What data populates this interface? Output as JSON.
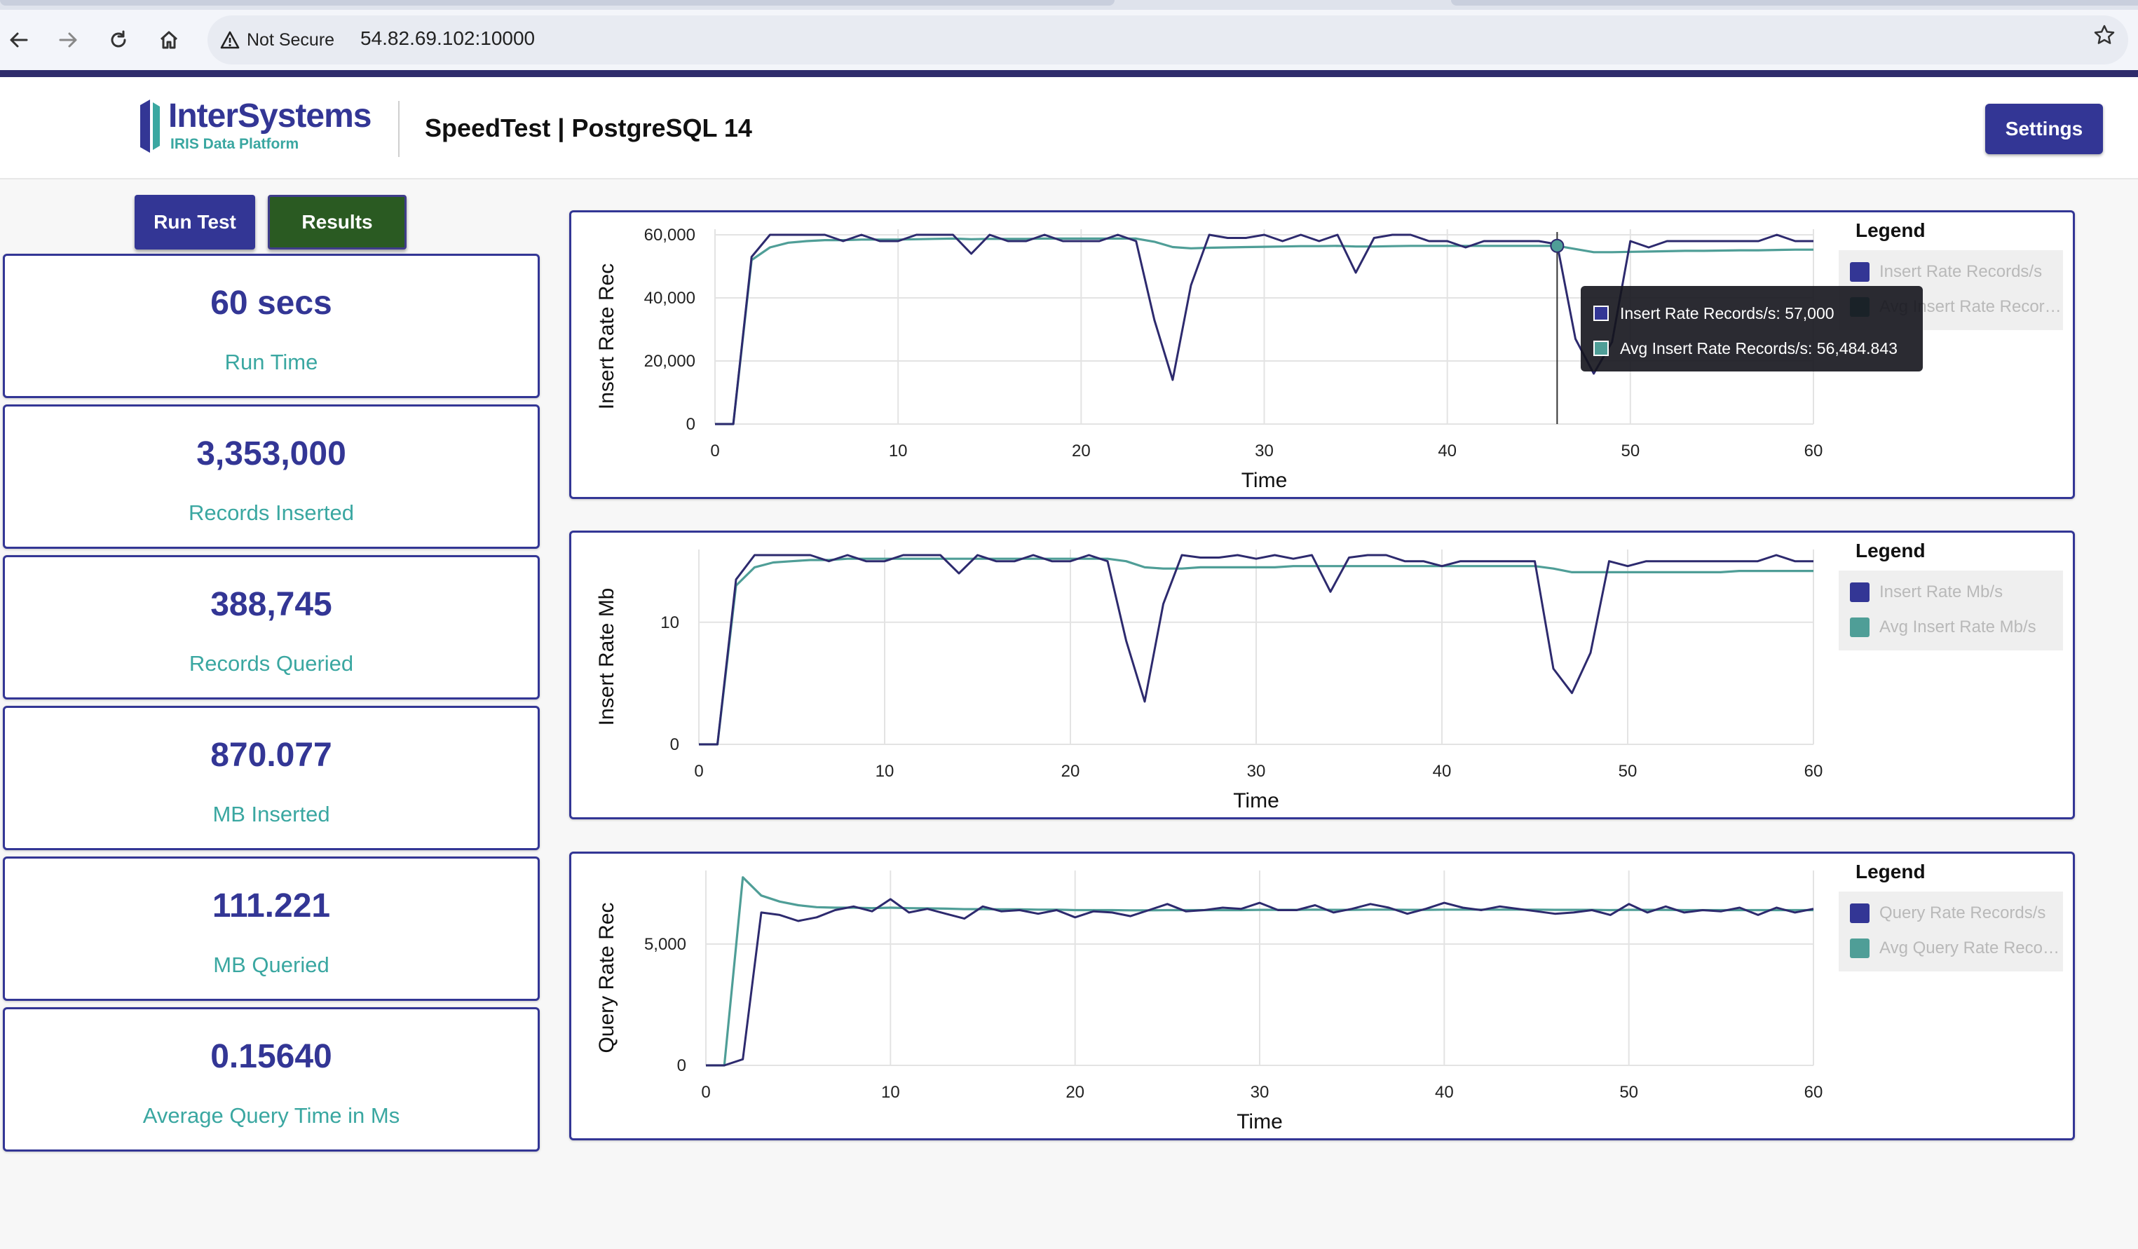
{
  "browser": {
    "security_label": "Not Secure",
    "url": "54.82.69.102:10000",
    "icons": [
      "back-icon",
      "forward-icon",
      "reload-icon",
      "home-icon",
      "warning-icon",
      "star-icon"
    ]
  },
  "header": {
    "brand_name": "InterSystems",
    "brand_tagline": "IRIS Data Platform",
    "title": "SpeedTest | PostgreSQL 14",
    "settings_label": "Settings"
  },
  "actions": {
    "run_test_label": "Run Test",
    "results_label": "Results"
  },
  "stats": [
    {
      "value": "60 secs",
      "label": "Run Time"
    },
    {
      "value": "3,353,000",
      "label": "Records Inserted"
    },
    {
      "value": "388,745",
      "label": "Records Queried"
    },
    {
      "value": "870.077",
      "label": "MB Inserted"
    },
    {
      "value": "111.221",
      "label": "MB Queried"
    },
    {
      "value": "0.15640",
      "label": "Average Query Time in Ms"
    }
  ],
  "colors": {
    "primary": "#333695",
    "teal": "#3aa7a1",
    "dark_green": "#2a5a22",
    "series_line": "#2d2a6e",
    "avg_line": "#4f9e97"
  },
  "chart_data": [
    {
      "type": "line",
      "xlabel": "Time",
      "ylabel": "Insert Rate Rec",
      "xlim": [
        0,
        60
      ],
      "ylim": [
        0,
        60000
      ],
      "xticks": [
        0,
        10,
        20,
        30,
        40,
        50,
        60
      ],
      "xtick_labels": [
        "0",
        "10",
        "20",
        "30",
        "40",
        "50",
        "60"
      ],
      "yticks": [
        0,
        20000,
        40000,
        60000
      ],
      "ytick_labels": [
        "0",
        "20,000",
        "40,000",
        "60,000"
      ],
      "grid": true,
      "legend_title": "Legend",
      "legend_position": "right",
      "series": [
        {
          "name": "Insert Rate Records/s",
          "color": "#2d2a6e",
          "x": [
            0,
            1,
            2,
            3,
            4,
            5,
            6,
            7,
            8,
            9,
            10,
            11,
            12,
            13,
            14,
            15,
            16,
            17,
            18,
            19,
            20,
            21,
            22,
            23,
            24,
            25,
            26,
            27,
            28,
            29,
            30,
            31,
            32,
            33,
            34,
            35,
            36,
            37,
            38,
            39,
            40,
            41,
            42,
            43,
            44,
            45,
            46,
            47,
            48,
            49,
            50,
            51,
            52,
            53,
            54,
            55,
            56,
            57,
            58,
            59,
            60
          ],
          "values": [
            0,
            0,
            53000,
            60000,
            60000,
            60000,
            60000,
            58000,
            60000,
            58000,
            58000,
            60000,
            60000,
            60000,
            54000,
            60000,
            58000,
            58000,
            60000,
            58000,
            58000,
            58000,
            60000,
            58000,
            33000,
            14000,
            44000,
            60000,
            59000,
            59000,
            60000,
            58000,
            60000,
            58000,
            60000,
            48000,
            59000,
            60000,
            60000,
            58000,
            58000,
            56000,
            58000,
            58000,
            58000,
            58000,
            57000,
            27000,
            16000,
            26000,
            58000,
            56000,
            58000,
            58000,
            58000,
            58000,
            58000,
            58000,
            60000,
            58000,
            58000
          ]
        },
        {
          "name": "Avg Insert Rate Records/s",
          "color": "#4f9e97",
          "x": [
            0,
            1,
            2,
            3,
            4,
            5,
            6,
            7,
            8,
            9,
            10,
            11,
            12,
            13,
            14,
            15,
            16,
            17,
            18,
            19,
            20,
            21,
            22,
            23,
            24,
            25,
            26,
            27,
            28,
            29,
            30,
            31,
            32,
            33,
            34,
            35,
            36,
            37,
            38,
            39,
            40,
            41,
            42,
            43,
            44,
            45,
            46,
            47,
            48,
            49,
            50,
            51,
            52,
            53,
            54,
            55,
            56,
            57,
            58,
            59,
            60
          ],
          "values": [
            0,
            0,
            52000,
            56000,
            57500,
            58000,
            58300,
            58300,
            58500,
            58500,
            58500,
            58600,
            58700,
            58800,
            58600,
            58700,
            58700,
            58700,
            58800,
            58800,
            58800,
            58800,
            58800,
            58800,
            57800,
            56100,
            55700,
            55900,
            56000,
            56100,
            56200,
            56300,
            56400,
            56400,
            56500,
            56300,
            56300,
            56400,
            56500,
            56500,
            56500,
            56500,
            56500,
            56500,
            56500,
            56500,
            56500,
            55500,
            54500,
            54500,
            54600,
            54700,
            54800,
            54900,
            54900,
            55000,
            55100,
            55100,
            55200,
            55300,
            55300
          ]
        }
      ],
      "tooltip": {
        "lines": [
          "Insert Rate Records/s: 57,000",
          "Avg Insert Rate Records/s: 56,484.843"
        ],
        "x": 46
      }
    },
    {
      "type": "line",
      "xlabel": "Time",
      "ylabel": "Insert Rate Mb",
      "xlim": [
        0,
        60
      ],
      "ylim": [
        0,
        15.5
      ],
      "xticks": [
        0,
        10,
        20,
        30,
        40,
        50,
        60
      ],
      "xtick_labels": [
        "0",
        "10",
        "20",
        "30",
        "40",
        "50",
        "60"
      ],
      "yticks": [
        0,
        10
      ],
      "ytick_labels": [
        "0",
        "10"
      ],
      "grid": true,
      "legend_title": "Legend",
      "legend_position": "right",
      "series": [
        {
          "name": "Insert Rate Mb/s",
          "color": "#2d2a6e",
          "x": [
            0,
            1,
            2,
            3,
            4,
            5,
            6,
            7,
            8,
            9,
            10,
            11,
            12,
            13,
            14,
            15,
            16,
            17,
            18,
            19,
            20,
            21,
            22,
            23,
            24,
            25,
            26,
            27,
            28,
            29,
            30,
            31,
            32,
            33,
            34,
            35,
            36,
            37,
            38,
            39,
            40,
            41,
            42,
            43,
            44,
            45,
            46,
            47,
            48,
            49,
            50,
            51,
            52,
            53,
            54,
            55,
            56,
            57,
            58,
            59,
            60
          ],
          "values": [
            0,
            0,
            13.5,
            15.5,
            15.5,
            15.5,
            15.5,
            15,
            15.5,
            15,
            15,
            15.5,
            15.5,
            15.5,
            14,
            15.5,
            15,
            15,
            15.5,
            15,
            15,
            15.5,
            15,
            8.5,
            3.5,
            11.5,
            15.5,
            15.3,
            15.3,
            15.5,
            15.2,
            15.5,
            15.2,
            15.5,
            12.5,
            15.3,
            15.5,
            15.5,
            15,
            15,
            14.6,
            15,
            15,
            15,
            15,
            15,
            6.2,
            4.2,
            7.5,
            15,
            14.6,
            15,
            15,
            15,
            15,
            15,
            15,
            15,
            15.5,
            15,
            15
          ]
        },
        {
          "name": "Avg Insert Rate Mb/s",
          "color": "#4f9e97",
          "x": [
            0,
            1,
            2,
            3,
            4,
            5,
            6,
            7,
            8,
            9,
            10,
            11,
            12,
            13,
            14,
            15,
            16,
            17,
            18,
            19,
            20,
            21,
            22,
            23,
            24,
            25,
            26,
            27,
            28,
            29,
            30,
            31,
            32,
            33,
            34,
            35,
            36,
            37,
            38,
            39,
            40,
            41,
            42,
            43,
            44,
            45,
            46,
            47,
            48,
            49,
            50,
            51,
            52,
            53,
            54,
            55,
            56,
            57,
            58,
            59,
            60
          ],
          "values": [
            0,
            0,
            13,
            14.5,
            14.9,
            15,
            15.1,
            15.1,
            15.2,
            15.2,
            15.2,
            15.2,
            15.2,
            15.2,
            15.2,
            15.2,
            15.2,
            15.2,
            15.2,
            15.2,
            15.2,
            15.2,
            15.2,
            15,
            14.5,
            14.4,
            14.4,
            14.5,
            14.5,
            14.5,
            14.5,
            14.5,
            14.6,
            14.6,
            14.6,
            14.6,
            14.6,
            14.6,
            14.6,
            14.6,
            14.6,
            14.6,
            14.6,
            14.6,
            14.6,
            14.6,
            14.4,
            14.1,
            14.1,
            14.1,
            14.1,
            14.1,
            14.1,
            14.1,
            14.1,
            14.1,
            14.2,
            14.2,
            14.2,
            14.2,
            14.2
          ]
        }
      ]
    },
    {
      "type": "line",
      "xlabel": "Time",
      "ylabel": "Query Rate Rec",
      "xlim": [
        0,
        60
      ],
      "ylim": [
        0,
        7800
      ],
      "xticks": [
        0,
        10,
        20,
        30,
        40,
        50,
        60
      ],
      "xtick_labels": [
        "0",
        "10",
        "20",
        "30",
        "40",
        "50",
        "60"
      ],
      "yticks": [
        0,
        5000
      ],
      "ytick_labels": [
        "0",
        "5,000"
      ],
      "grid": true,
      "legend_title": "Legend",
      "legend_position": "right",
      "series": [
        {
          "name": "Query Rate Records/s",
          "color": "#2d2a6e",
          "x": [
            0,
            1,
            2,
            3,
            4,
            5,
            6,
            7,
            8,
            9,
            10,
            11,
            12,
            13,
            14,
            15,
            16,
            17,
            18,
            19,
            20,
            21,
            22,
            23,
            24,
            25,
            26,
            27,
            28,
            29,
            30,
            31,
            32,
            33,
            34,
            35,
            36,
            37,
            38,
            39,
            40,
            41,
            42,
            43,
            44,
            45,
            46,
            47,
            48,
            49,
            50,
            51,
            52,
            53,
            54,
            55,
            56,
            57,
            58,
            59,
            60
          ],
          "values": [
            0,
            0,
            250,
            6300,
            6200,
            5950,
            6100,
            6400,
            6550,
            6350,
            6850,
            6300,
            6450,
            6250,
            6050,
            6550,
            6350,
            6400,
            6250,
            6400,
            6100,
            6350,
            6300,
            6150,
            6400,
            6650,
            6350,
            6400,
            6500,
            6450,
            6700,
            6400,
            6400,
            6600,
            6300,
            6450,
            6650,
            6500,
            6250,
            6450,
            6700,
            6500,
            6400,
            6550,
            6450,
            6350,
            6250,
            6300,
            6400,
            6200,
            6650,
            6300,
            6550,
            6300,
            6400,
            6350,
            6500,
            6200,
            6500,
            6300,
            6450
          ]
        },
        {
          "name": "Avg Query Rate Records/s",
          "color": "#4f9e97",
          "x": [
            0,
            1,
            2,
            3,
            4,
            5,
            6,
            7,
            8,
            9,
            10,
            11,
            12,
            13,
            14,
            15,
            16,
            17,
            18,
            19,
            20,
            21,
            22,
            23,
            24,
            25,
            26,
            27,
            28,
            29,
            30,
            31,
            32,
            33,
            34,
            35,
            36,
            37,
            38,
            39,
            40,
            41,
            42,
            43,
            44,
            45,
            46,
            47,
            48,
            49,
            50,
            51,
            52,
            53,
            54,
            55,
            56,
            57,
            58,
            59,
            60
          ],
          "values": [
            0,
            0,
            7750,
            7000,
            6750,
            6600,
            6520,
            6500,
            6500,
            6480,
            6500,
            6480,
            6470,
            6460,
            6440,
            6440,
            6430,
            6430,
            6420,
            6420,
            6400,
            6400,
            6400,
            6390,
            6390,
            6400,
            6400,
            6400,
            6400,
            6400,
            6410,
            6410,
            6410,
            6420,
            6410,
            6410,
            6420,
            6420,
            6410,
            6410,
            6420,
            6420,
            6420,
            6420,
            6420,
            6420,
            6410,
            6410,
            6410,
            6400,
            6410,
            6410,
            6410,
            6400,
            6400,
            6400,
            6400,
            6400,
            6400,
            6400,
            6400
          ]
        }
      ]
    }
  ]
}
